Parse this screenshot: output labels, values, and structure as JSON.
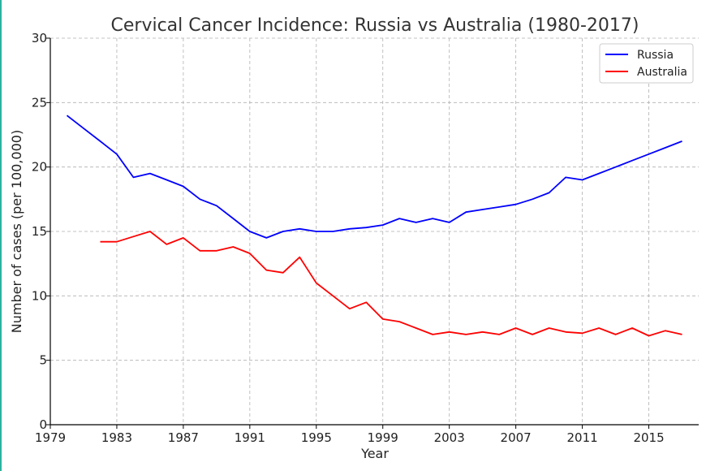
{
  "chart_data": {
    "type": "line",
    "title": "Cervical Cancer Incidence: Russia vs Australia (1980-2017)",
    "xlabel": "Year",
    "ylabel": "Number of cases (per 100,000)",
    "xlim": [
      1979,
      2018
    ],
    "ylim": [
      0,
      30
    ],
    "xticks": [
      1979,
      1983,
      1987,
      1991,
      1995,
      1999,
      2003,
      2007,
      2011,
      2015
    ],
    "yticks": [
      0,
      5,
      10,
      15,
      20,
      25,
      30
    ],
    "grid": true,
    "legend_position": "top-right",
    "series": [
      {
        "name": "Russia",
        "color": "#0000ff",
        "x": [
          1980,
          1981,
          1982,
          1983,
          1984,
          1985,
          1986,
          1987,
          1988,
          1989,
          1990,
          1991,
          1992,
          1993,
          1994,
          1995,
          1996,
          1997,
          1998,
          1999,
          2000,
          2001,
          2002,
          2003,
          2004,
          2005,
          2006,
          2007,
          2008,
          2009,
          2010,
          2011,
          2012,
          2013,
          2014,
          2015,
          2016,
          2017
        ],
        "values": [
          24.0,
          23.0,
          22.0,
          21.0,
          19.2,
          19.5,
          19.0,
          18.5,
          17.5,
          17.0,
          16.0,
          15.0,
          14.5,
          15.0,
          15.2,
          15.0,
          15.0,
          15.2,
          15.3,
          15.5,
          16.0,
          15.7,
          16.0,
          15.7,
          16.5,
          16.7,
          16.9,
          17.1,
          17.5,
          18.0,
          19.2,
          19.0,
          19.5,
          20.0,
          20.5,
          21.0,
          21.5,
          22.0
        ]
      },
      {
        "name": "Australia",
        "color": "#ff0000",
        "x": [
          1982,
          1983,
          1984,
          1985,
          1986,
          1987,
          1988,
          1989,
          1990,
          1991,
          1992,
          1993,
          1994,
          1995,
          1996,
          1997,
          1998,
          1999,
          2000,
          2001,
          2002,
          2003,
          2004,
          2005,
          2006,
          2007,
          2008,
          2009,
          2010,
          2011,
          2012,
          2013,
          2014,
          2015,
          2016,
          2017
        ],
        "values": [
          14.2,
          14.2,
          14.6,
          15.0,
          14.0,
          14.5,
          13.5,
          13.5,
          13.8,
          13.3,
          12.0,
          11.8,
          13.0,
          11.0,
          10.0,
          9.0,
          9.5,
          8.2,
          8.0,
          7.5,
          7.0,
          7.2,
          7.0,
          7.2,
          7.0,
          7.5,
          7.0,
          7.5,
          7.2,
          7.1,
          7.5,
          7.0,
          7.5,
          6.9,
          7.3,
          7.0
        ]
      }
    ]
  }
}
